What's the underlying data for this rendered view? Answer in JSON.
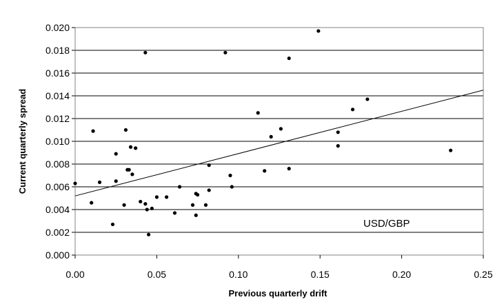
{
  "chart_data": {
    "type": "scatter",
    "title": "",
    "xlabel": "Previous quarterly drift",
    "ylabel": "Current quarterly spread",
    "annotation": "USD/GBP",
    "xlim": [
      0,
      0.25
    ],
    "ylim": [
      0,
      0.02
    ],
    "x_ticks": [
      "0.00",
      "0.05",
      "0.10",
      "0.15",
      "0.20",
      "0.25"
    ],
    "y_ticks": [
      "0.000",
      "0.002",
      "0.004",
      "0.006",
      "0.008",
      "0.010",
      "0.012",
      "0.014",
      "0.016",
      "0.018",
      "0.020"
    ],
    "grid": "horizontal",
    "legend": "none",
    "colors": {
      "points": "#000000",
      "grid": "#000000",
      "trend": "#000000",
      "background": "#ffffff"
    },
    "trendline": {
      "x": [
        0,
        0.25
      ],
      "y": [
        0.0052,
        0.0145
      ]
    },
    "series": [
      {
        "points": [
          [
            0.0,
            0.0063
          ],
          [
            0.01,
            0.0046
          ],
          [
            0.011,
            0.0109
          ],
          [
            0.015,
            0.0064
          ],
          [
            0.023,
            0.0027
          ],
          [
            0.025,
            0.0089
          ],
          [
            0.025,
            0.0065
          ],
          [
            0.03,
            0.0044
          ],
          [
            0.031,
            0.011
          ],
          [
            0.032,
            0.0075
          ],
          [
            0.033,
            0.0075
          ],
          [
            0.034,
            0.0095
          ],
          [
            0.035,
            0.0071
          ],
          [
            0.037,
            0.0094
          ],
          [
            0.04,
            0.0047
          ],
          [
            0.043,
            0.0045
          ],
          [
            0.043,
            0.0178
          ],
          [
            0.044,
            0.004
          ],
          [
            0.045,
            0.0018
          ],
          [
            0.047,
            0.0041
          ],
          [
            0.05,
            0.0051
          ],
          [
            0.056,
            0.0051
          ],
          [
            0.061,
            0.0037
          ],
          [
            0.064,
            0.006
          ],
          [
            0.072,
            0.0044
          ],
          [
            0.074,
            0.0054
          ],
          [
            0.074,
            0.0035
          ],
          [
            0.075,
            0.0053
          ],
          [
            0.08,
            0.0044
          ],
          [
            0.082,
            0.0079
          ],
          [
            0.082,
            0.0057
          ],
          [
            0.092,
            0.0178
          ],
          [
            0.095,
            0.007
          ],
          [
            0.096,
            0.006
          ],
          [
            0.112,
            0.0125
          ],
          [
            0.116,
            0.0074
          ],
          [
            0.12,
            0.0104
          ],
          [
            0.126,
            0.0111
          ],
          [
            0.131,
            0.0173
          ],
          [
            0.131,
            0.0076
          ],
          [
            0.149,
            0.0197
          ],
          [
            0.161,
            0.0108
          ],
          [
            0.161,
            0.0096
          ],
          [
            0.17,
            0.0128
          ],
          [
            0.179,
            0.0137
          ],
          [
            0.23,
            0.0092
          ]
        ]
      }
    ]
  }
}
